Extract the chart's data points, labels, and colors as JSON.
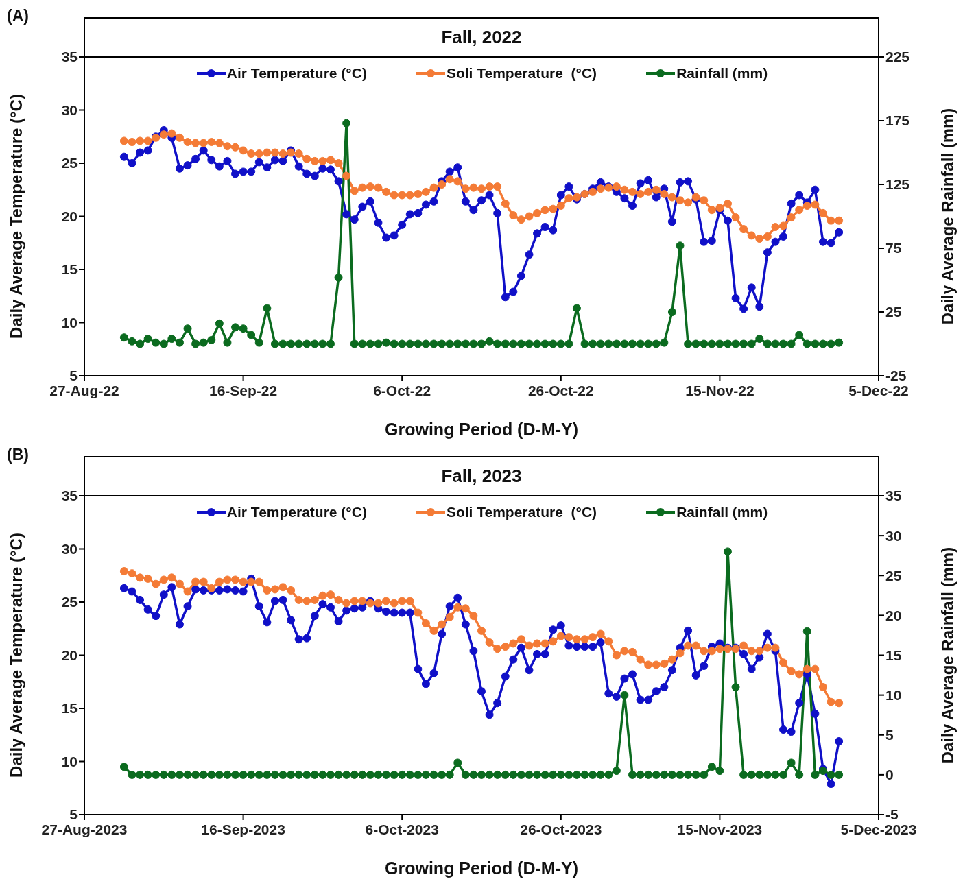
{
  "chart_data": [
    {
      "type": "line",
      "title": "Fall, 2022",
      "annotations": [
        "(A)"
      ],
      "xlabel": "Growing Period (D-M-Y)",
      "ylabel": "Daily Average Temperature (°C)",
      "y2label": "Daily Average Rainfall (mm)",
      "xlim": [
        "2022-08-27",
        "2022-12-05"
      ],
      "xticks": [
        {
          "value": "2022-08-27",
          "label": "27-Aug-22"
        },
        {
          "value": "2022-09-16",
          "label": "16-Sep-22"
        },
        {
          "value": "2022-10-06",
          "label": "6-Oct-22"
        },
        {
          "value": "2022-10-26",
          "label": "26-Oct-22"
        },
        {
          "value": "2022-11-15",
          "label": "15-Nov-22"
        },
        {
          "value": "2022-12-05",
          "label": "5-Dec-22"
        }
      ],
      "ylim": [
        5,
        35
      ],
      "yticks": [
        5,
        10,
        15,
        20,
        25,
        30,
        35
      ],
      "y2lim": [
        -25,
        225
      ],
      "y2ticks": [
        -25,
        25,
        75,
        125,
        175,
        225
      ],
      "legend": "top",
      "marker": "circle",
      "line_style": "solid",
      "x": [
        "2022-09-01",
        "2022-09-02",
        "2022-09-03",
        "2022-09-04",
        "2022-09-05",
        "2022-09-06",
        "2022-09-07",
        "2022-09-08",
        "2022-09-09",
        "2022-09-10",
        "2022-09-11",
        "2022-09-12",
        "2022-09-13",
        "2022-09-14",
        "2022-09-15",
        "2022-09-16",
        "2022-09-17",
        "2022-09-18",
        "2022-09-19",
        "2022-09-20",
        "2022-09-21",
        "2022-09-22",
        "2022-09-23",
        "2022-09-24",
        "2022-09-25",
        "2022-09-26",
        "2022-09-27",
        "2022-09-28",
        "2022-09-29",
        "2022-09-30",
        "2022-10-01",
        "2022-10-02",
        "2022-10-03",
        "2022-10-04",
        "2022-10-05",
        "2022-10-06",
        "2022-10-07",
        "2022-10-08",
        "2022-10-09",
        "2022-10-10",
        "2022-10-11",
        "2022-10-12",
        "2022-10-13",
        "2022-10-14",
        "2022-10-15",
        "2022-10-16",
        "2022-10-17",
        "2022-10-18",
        "2022-10-19",
        "2022-10-20",
        "2022-10-21",
        "2022-10-22",
        "2022-10-23",
        "2022-10-24",
        "2022-10-25",
        "2022-10-26",
        "2022-10-27",
        "2022-10-28",
        "2022-10-29",
        "2022-10-30",
        "2022-10-31",
        "2022-11-01",
        "2022-11-02",
        "2022-11-03",
        "2022-11-04",
        "2022-11-05",
        "2022-11-06",
        "2022-11-07",
        "2022-11-08",
        "2022-11-09",
        "2022-11-10",
        "2022-11-11",
        "2022-11-12",
        "2022-11-13",
        "2022-11-14",
        "2022-11-15",
        "2022-11-16",
        "2022-11-17",
        "2022-11-18",
        "2022-11-19",
        "2022-11-20",
        "2022-11-21",
        "2022-11-22",
        "2022-11-23",
        "2022-11-24",
        "2022-11-25",
        "2022-11-26",
        "2022-11-27",
        "2022-11-28",
        "2022-11-29",
        "2022-11-30"
      ],
      "series": [
        {
          "name": "Air Temperature (°C)",
          "color": "#1010c8",
          "values": [
            25.6,
            25.0,
            26.0,
            26.2,
            27.5,
            28.1,
            27.4,
            24.5,
            24.8,
            25.4,
            26.2,
            25.3,
            24.7,
            25.2,
            24.0,
            24.2,
            24.2,
            25.1,
            24.6,
            25.3,
            25.2,
            26.2,
            24.7,
            24.0,
            23.8,
            24.5,
            24.4,
            23.3,
            20.2,
            19.7,
            20.9,
            21.4,
            19.4,
            18.0,
            18.2,
            19.2,
            20.2,
            20.3,
            21.1,
            21.4,
            23.3,
            24.2,
            24.6,
            21.4,
            20.6,
            21.5,
            22.0,
            20.3,
            12.4,
            12.9,
            14.4,
            16.4,
            18.4,
            19.0,
            18.7,
            22.0,
            22.8,
            21.6,
            22.1,
            22.6,
            23.2,
            22.8,
            22.3,
            21.7,
            21.0,
            23.1,
            23.4,
            21.8,
            22.6,
            19.5,
            23.2,
            23.3,
            21.6,
            17.6,
            17.7,
            20.6,
            19.6,
            12.3,
            11.3,
            13.3,
            11.5,
            16.6,
            17.6,
            18.1,
            21.2,
            22.0,
            21.3,
            22.5,
            17.6,
            17.5,
            18.5
          ]
        },
        {
          "name": "Soli Temperature  (°C)",
          "color": "#f47b36",
          "values": [
            27.1,
            27.0,
            27.1,
            27.1,
            27.4,
            27.7,
            27.8,
            27.4,
            27.0,
            26.9,
            26.9,
            27.0,
            26.9,
            26.6,
            26.5,
            26.2,
            25.9,
            25.9,
            26.0,
            26.0,
            25.9,
            26.0,
            25.9,
            25.4,
            25.2,
            25.2,
            25.3,
            25.0,
            23.8,
            22.4,
            22.7,
            22.8,
            22.7,
            22.3,
            22.0,
            22.0,
            22.0,
            22.1,
            22.3,
            22.7,
            23.0,
            23.5,
            23.3,
            22.6,
            22.7,
            22.6,
            22.8,
            22.8,
            21.2,
            20.1,
            19.7,
            20.0,
            20.3,
            20.6,
            20.7,
            21.0,
            21.7,
            21.8,
            22.1,
            22.3,
            22.6,
            22.7,
            22.8,
            22.5,
            22.3,
            22.1,
            22.3,
            22.5,
            22.1,
            21.8,
            21.5,
            21.3,
            21.8,
            21.5,
            20.6,
            20.8,
            21.2,
            19.9,
            18.8,
            18.2,
            17.9,
            18.1,
            19.0,
            19.1,
            19.9,
            20.6,
            21.0,
            21.1,
            20.3,
            19.6,
            19.6
          ]
        },
        {
          "name": "Rainfall (mm)",
          "color": "#0b6b1f",
          "axis": "y2",
          "values": [
            5,
            2,
            0,
            4,
            1,
            0,
            4,
            1,
            12,
            0,
            1,
            3,
            16,
            1,
            13,
            12,
            7,
            1,
            28,
            0,
            0,
            0,
            0,
            0,
            0,
            0,
            0,
            52,
            173,
            0,
            0,
            0,
            0,
            1,
            0,
            0,
            0,
            0,
            0,
            0,
            0,
            0,
            0,
            0,
            0,
            0,
            2,
            0,
            0,
            0,
            0,
            0,
            0,
            0,
            0,
            0,
            0,
            28,
            0,
            0,
            0,
            0,
            0,
            0,
            0,
            0,
            0,
            0,
            1,
            25,
            77,
            0,
            0,
            0,
            0,
            0,
            0,
            0,
            0,
            0,
            4,
            0,
            0,
            0,
            0,
            7,
            0,
            0,
            0,
            0,
            1
          ]
        }
      ]
    },
    {
      "type": "line",
      "title": "Fall, 2023",
      "annotations": [
        "(B)"
      ],
      "xlabel": "Growing Period (D-M-Y)",
      "ylabel": "Daily Average Temperature (°C)",
      "y2label": "Daily Average Rainfall (mm)",
      "xlim": [
        "2023-08-27",
        "2023-12-05"
      ],
      "xticks": [
        {
          "value": "2023-08-27",
          "label": "27-Aug-2023"
        },
        {
          "value": "2023-09-16",
          "label": "16-Sep-2023"
        },
        {
          "value": "2023-10-06",
          "label": "6-Oct-2023"
        },
        {
          "value": "2023-10-26",
          "label": "26-Oct-2023"
        },
        {
          "value": "2023-11-15",
          "label": "15-Nov-2023"
        },
        {
          "value": "2023-12-05",
          "label": "5-Dec-2023"
        }
      ],
      "ylim": [
        5,
        35
      ],
      "yticks": [
        5,
        10,
        15,
        20,
        25,
        30,
        35
      ],
      "y2lim": [
        -5,
        35
      ],
      "y2ticks": [
        -5,
        0,
        5,
        10,
        15,
        20,
        25,
        30,
        35
      ],
      "legend": "top",
      "marker": "circle",
      "line_style": "solid",
      "x": [
        "2023-09-01",
        "2023-09-02",
        "2023-09-03",
        "2023-09-04",
        "2023-09-05",
        "2023-09-06",
        "2023-09-07",
        "2023-09-08",
        "2023-09-09",
        "2023-09-10",
        "2023-09-11",
        "2023-09-12",
        "2023-09-13",
        "2023-09-14",
        "2023-09-15",
        "2023-09-16",
        "2023-09-17",
        "2023-09-18",
        "2023-09-19",
        "2023-09-20",
        "2023-09-21",
        "2023-09-22",
        "2023-09-23",
        "2023-09-24",
        "2023-09-25",
        "2023-09-26",
        "2023-09-27",
        "2023-09-28",
        "2023-09-29",
        "2023-09-30",
        "2023-10-01",
        "2023-10-02",
        "2023-10-03",
        "2023-10-04",
        "2023-10-05",
        "2023-10-06",
        "2023-10-07",
        "2023-10-08",
        "2023-10-09",
        "2023-10-10",
        "2023-10-11",
        "2023-10-12",
        "2023-10-13",
        "2023-10-14",
        "2023-10-15",
        "2023-10-16",
        "2023-10-17",
        "2023-10-18",
        "2023-10-19",
        "2023-10-20",
        "2023-10-21",
        "2023-10-22",
        "2023-10-23",
        "2023-10-24",
        "2023-10-25",
        "2023-10-26",
        "2023-10-27",
        "2023-10-28",
        "2023-10-29",
        "2023-10-30",
        "2023-10-31",
        "2023-11-01",
        "2023-11-02",
        "2023-11-03",
        "2023-11-04",
        "2023-11-05",
        "2023-11-06",
        "2023-11-07",
        "2023-11-08",
        "2023-11-09",
        "2023-11-10",
        "2023-11-11",
        "2023-11-12",
        "2023-11-13",
        "2023-11-14",
        "2023-11-15",
        "2023-11-16",
        "2023-11-17",
        "2023-11-18",
        "2023-11-19",
        "2023-11-20",
        "2023-11-21",
        "2023-11-22",
        "2023-11-23",
        "2023-11-24",
        "2023-11-25",
        "2023-11-26",
        "2023-11-27",
        "2023-11-28",
        "2023-11-29",
        "2023-11-30"
      ],
      "series": [
        {
          "name": "Air Temperature (°C)",
          "color": "#1010c8",
          "values": [
            26.3,
            26.0,
            25.2,
            24.3,
            23.7,
            25.7,
            26.4,
            22.9,
            24.6,
            26.2,
            26.1,
            26.1,
            26.1,
            26.2,
            26.1,
            26.0,
            27.2,
            24.6,
            23.1,
            25.1,
            25.2,
            23.3,
            21.5,
            21.6,
            23.7,
            24.8,
            24.5,
            23.2,
            24.2,
            24.4,
            24.5,
            25.1,
            24.4,
            24.1,
            24.0,
            24.0,
            24.0,
            18.7,
            17.3,
            18.3,
            22.0,
            24.6,
            25.4,
            22.9,
            20.4,
            16.6,
            14.4,
            15.5,
            18.0,
            19.6,
            20.7,
            18.6,
            20.1,
            20.1,
            22.4,
            22.8,
            20.9,
            20.8,
            20.8,
            20.8,
            21.2,
            16.4,
            16.1,
            17.8,
            18.2,
            15.8,
            15.8,
            16.6,
            17.0,
            18.6,
            20.7,
            22.3,
            18.1,
            19.0,
            20.8,
            21.1,
            20.7,
            20.7,
            20.1,
            18.7,
            19.8,
            22.0,
            20.4,
            13.0,
            12.8,
            15.5,
            18.2,
            14.5,
            9.3,
            7.9,
            11.9
          ]
        },
        {
          "name": "Soli Temperature  (°C)",
          "color": "#f47b36",
          "values": [
            27.9,
            27.7,
            27.3,
            27.2,
            26.7,
            27.1,
            27.3,
            26.7,
            26.0,
            26.9,
            26.9,
            26.3,
            26.9,
            27.1,
            27.1,
            26.9,
            26.9,
            26.9,
            26.1,
            26.2,
            26.4,
            26.1,
            25.2,
            25.1,
            25.2,
            25.6,
            25.7,
            25.2,
            24.9,
            25.1,
            25.1,
            24.9,
            24.9,
            25.1,
            24.9,
            25.1,
            25.1,
            24.0,
            23.0,
            22.3,
            22.9,
            23.6,
            24.5,
            24.4,
            23.7,
            22.3,
            21.2,
            20.6,
            20.8,
            21.1,
            21.5,
            20.9,
            21.1,
            21.1,
            21.3,
            21.8,
            21.7,
            21.5,
            21.5,
            21.7,
            22.0,
            21.3,
            20.0,
            20.4,
            20.3,
            19.6,
            19.1,
            19.1,
            19.2,
            19.6,
            20.2,
            20.9,
            20.9,
            20.4,
            20.4,
            20.6,
            20.6,
            20.6,
            20.9,
            20.4,
            20.4,
            20.7,
            20.7,
            19.3,
            18.5,
            18.2,
            18.7,
            18.7,
            17.0,
            15.6,
            15.5
          ]
        },
        {
          "name": "Rainfall (mm)",
          "color": "#0b6b1f",
          "axis": "y2",
          "values": [
            1,
            0,
            0,
            0,
            0,
            0,
            0,
            0,
            0,
            0,
            0,
            0,
            0,
            0,
            0,
            0,
            0,
            0,
            0,
            0,
            0,
            0,
            0,
            0,
            0,
            0,
            0,
            0,
            0,
            0,
            0,
            0,
            0,
            0,
            0,
            0,
            0,
            0,
            0,
            0,
            0,
            0,
            1.5,
            0,
            0,
            0,
            0,
            0,
            0,
            0,
            0,
            0,
            0,
            0,
            0,
            0,
            0,
            0,
            0,
            0,
            0,
            0,
            0.5,
            10,
            0,
            0,
            0,
            0,
            0,
            0,
            0,
            0,
            0,
            0,
            1,
            0.5,
            28,
            11,
            0,
            0,
            0,
            0,
            0,
            0,
            1.5,
            0,
            18,
            0,
            0.5,
            0,
            0
          ]
        }
      ]
    }
  ]
}
